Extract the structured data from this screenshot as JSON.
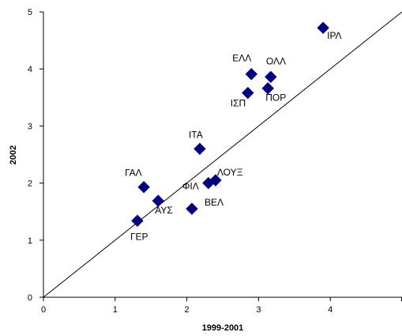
{
  "chart_data": {
    "type": "scatter",
    "xlabel": "1999-2001",
    "ylabel": "2002",
    "xlim": [
      0,
      5
    ],
    "ylim": [
      0,
      5
    ],
    "xticks": [
      "0",
      "1",
      "2",
      "3",
      "4"
    ],
    "yticks": [
      "0",
      "1",
      "2",
      "3",
      "4",
      "5"
    ],
    "grid": false,
    "legend": "none",
    "marker": "diamond",
    "marker_color": "#000080",
    "reference_line": {
      "from": [
        0,
        0
      ],
      "to": [
        5,
        5
      ]
    },
    "points": [
      {
        "label": "ΙΡΛ",
        "x": 3.9,
        "y": 4.72
      },
      {
        "label": "ΕΛΛ",
        "x": 2.9,
        "y": 3.91
      },
      {
        "label": "ΟΛΛ",
        "x": 3.17,
        "y": 3.86
      },
      {
        "label": "ΙΣΠ",
        "x": 2.85,
        "y": 3.58
      },
      {
        "label": "ΠΟΡ",
        "x": 3.13,
        "y": 3.66
      },
      {
        "label": "ΙΤΑ",
        "x": 2.18,
        "y": 2.6
      },
      {
        "label": "ΛΟΥΞ",
        "x": 2.4,
        "y": 2.05
      },
      {
        "label": "ΦΙΛ",
        "x": 2.3,
        "y": 2.0
      },
      {
        "label": "ΓΑΛ",
        "x": 1.4,
        "y": 1.93
      },
      {
        "label": "ΑΥΣ",
        "x": 1.6,
        "y": 1.69
      },
      {
        "label": "ΒΕΛ",
        "x": 2.07,
        "y": 1.55
      },
      {
        "label": "ΓΕΡ",
        "x": 1.31,
        "y": 1.34
      }
    ]
  }
}
